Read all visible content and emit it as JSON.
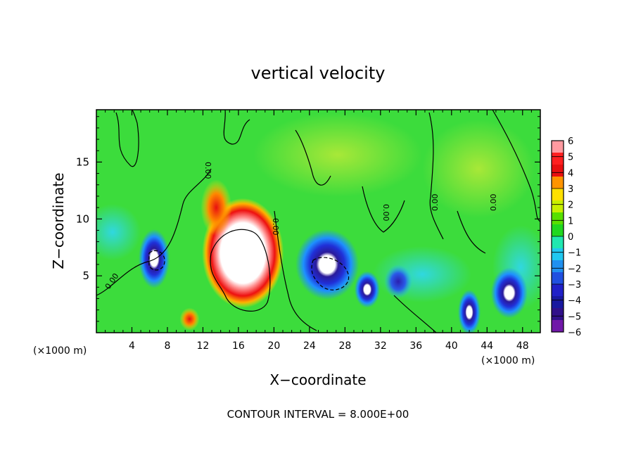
{
  "chart_data": {
    "type": "heatmap",
    "title": "vertical velocity",
    "xlabel": "X−coordinate",
    "ylabel": "Z−coordinate",
    "x_unit_left": "(×1000 m)",
    "x_unit_right": "(×1000 m)",
    "footer": "CONTOUR INTERVAL = 8.000E+00",
    "xlim": [
      0,
      50
    ],
    "ylim": [
      0,
      19.6
    ],
    "x_ticks": [
      "4",
      "8",
      "12",
      "16",
      "20",
      "24",
      "28",
      "32",
      "36",
      "40",
      "44",
      "48"
    ],
    "y_ticks": [
      "5",
      "10",
      "15"
    ],
    "colorbar": {
      "range": [
        -6,
        6
      ],
      "labels": [
        "6",
        "5",
        "4",
        "3",
        "2",
        "1",
        "0",
        "−1",
        "−2",
        "−3",
        "−4",
        "−5",
        "−6"
      ]
    },
    "contour_labels": [
      "0.00",
      "0.00",
      "0.00",
      "0.00",
      "0.00",
      "0.00"
    ],
    "features": [
      {
        "x": 6.5,
        "z": 6.5,
        "w": -7
      },
      {
        "x": 16.5,
        "z": 7.0,
        "w": 8
      },
      {
        "x": 13.5,
        "z": 11.0,
        "w": 4
      },
      {
        "x": 10.5,
        "z": 1.2,
        "w": 4
      },
      {
        "x": 26.0,
        "z": 6.0,
        "w": -7
      },
      {
        "x": 30.5,
        "z": 3.8,
        "w": -6
      },
      {
        "x": 42.0,
        "z": 1.8,
        "w": -7
      },
      {
        "x": 46.5,
        "z": 3.5,
        "w": -6
      },
      {
        "x": 34.0,
        "z": 4.5,
        "w": -4
      }
    ]
  }
}
